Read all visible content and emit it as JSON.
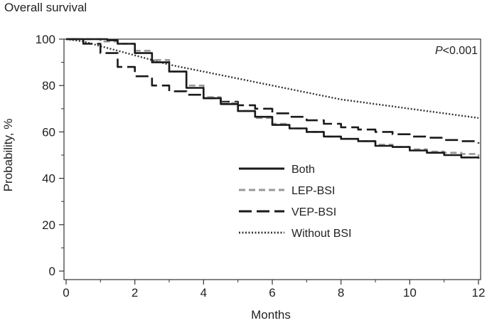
{
  "chart_data": {
    "type": "line",
    "title": "Overall survival",
    "xlabel": "Months",
    "ylabel": "Probability, %",
    "xlim": [
      0,
      12
    ],
    "ylim": [
      0,
      100
    ],
    "xticks": [
      0,
      2,
      4,
      6,
      8,
      10,
      12
    ],
    "xticks_minor": [
      1,
      3,
      5,
      7,
      9,
      11
    ],
    "yticks": [
      0,
      20,
      40,
      60,
      80,
      100
    ],
    "yticks_minor": [
      10,
      30,
      50,
      70,
      90
    ],
    "grid": false,
    "annotation": {
      "prefix": "P",
      "text": "<0.001"
    },
    "legend_position": "center-right",
    "series": [
      {
        "name": "Both",
        "style": "solid",
        "color": "#1a1a1a",
        "x": [
          0,
          0.5,
          1.0,
          1.2,
          1.5,
          2.0,
          2.5,
          3.0,
          3.5,
          4.0,
          4.5,
          5.0,
          5.5,
          6.0,
          6.5,
          7.0,
          7.5,
          8.0,
          8.5,
          9.0,
          9.5,
          10.0,
          10.5,
          11.0,
          11.5,
          12.0
        ],
        "values": [
          100,
          100,
          100,
          99.5,
          98,
          94,
          90,
          86,
          79,
          74.5,
          72,
          69,
          66.5,
          63,
          61.5,
          60,
          58,
          57,
          56,
          54,
          53.5,
          52,
          51,
          50,
          49,
          48.5
        ]
      },
      {
        "name": "LEP-BSI",
        "style": "dashed",
        "color": "#999999",
        "x": [
          0,
          0.5,
          1.0,
          1.5,
          2.0,
          2.5,
          3.0,
          3.5,
          4.0,
          4.5,
          5.0,
          5.5,
          6.0,
          6.5,
          7.0,
          7.5,
          8.0,
          8.5,
          9.0,
          9.5,
          10.0,
          10.5,
          11.0,
          11.5,
          12.0
        ],
        "values": [
          100,
          100,
          99,
          98,
          95,
          91,
          86,
          80,
          75,
          72.5,
          69,
          66,
          63.5,
          61.5,
          60,
          58,
          57,
          56,
          54.5,
          53.5,
          52.5,
          51.5,
          51,
          50.5,
          49.5
        ]
      },
      {
        "name": "VEP-BSI",
        "style": "long-dash",
        "color": "#1a1a1a",
        "x": [
          0,
          0.5,
          1.0,
          1.5,
          2.0,
          2.5,
          3.0,
          3.5,
          4.0,
          4.5,
          5.0,
          5.5,
          6.0,
          6.5,
          7.0,
          7.5,
          8.0,
          8.5,
          9.0,
          9.5,
          10.0,
          10.5,
          11.0,
          11.5,
          12.0
        ],
        "values": [
          100,
          98,
          94,
          88,
          84,
          80,
          77.5,
          76,
          74.5,
          73,
          71.5,
          70,
          68,
          66.5,
          65,
          63.5,
          62,
          61,
          60,
          59,
          58,
          57.5,
          56.5,
          56,
          55
        ]
      },
      {
        "name": "Without BSI",
        "style": "dotted",
        "color": "#333333",
        "x": [
          0,
          0.5,
          1.0,
          1.5,
          2.0,
          2.5,
          3.0,
          3.5,
          4.0,
          4.5,
          5.0,
          5.5,
          6.0,
          6.5,
          7.0,
          7.5,
          8.0,
          8.5,
          9.0,
          9.5,
          10.0,
          10.5,
          11.0,
          11.5,
          12.0
        ],
        "values": [
          100,
          99,
          97,
          95,
          93,
          91,
          89,
          87.5,
          86,
          84.5,
          83,
          81.5,
          80,
          78.5,
          77,
          75.5,
          74,
          73,
          72,
          71,
          70,
          69,
          68,
          67,
          66
        ]
      }
    ]
  }
}
